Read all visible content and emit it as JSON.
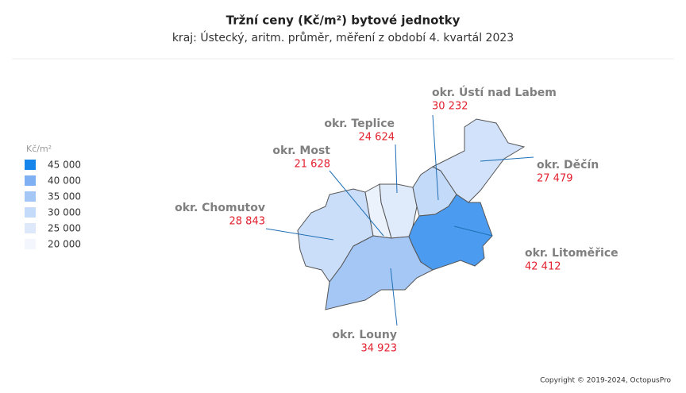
{
  "chart_data": {
    "type": "choropleth",
    "title": "Tržní ceny  (Kč/m²) bytové jednotky",
    "subtitle": "kraj: Ústecký, aritm. průměr, měření z období 4. kvartál 2023",
    "legend_title": "Kč/m²",
    "scale_ticks": [
      {
        "value": 45000,
        "label": "45 000"
      },
      {
        "value": 40000,
        "label": "40 000"
      },
      {
        "value": 35000,
        "label": "35 000"
      },
      {
        "value": 30000,
        "label": "30 000"
      },
      {
        "value": 25000,
        "label": "25 000"
      },
      {
        "value": 20000,
        "label": "20 000"
      }
    ],
    "scale_colors": [
      "#1585ec",
      "#7eb0f3",
      "#a4c7f6",
      "#c4dbf9",
      "#dde9fb",
      "#f3f7fd"
    ],
    "regions": [
      "okr. Chomutov",
      "okr. Most",
      "okr. Teplice",
      "okr. Ústí nad Labem",
      "okr. Děčín",
      "okr. Litoměřice",
      "okr. Louny"
    ],
    "values": [
      28843,
      21628,
      24624,
      30232,
      27479,
      42412,
      34923
    ],
    "value_labels": [
      "28 843",
      "21 628",
      "24 624",
      "30 232",
      "27 479",
      "42 412",
      "34 923"
    ],
    "copyright": "Copyright © 2019-2024, OctopusPro"
  }
}
